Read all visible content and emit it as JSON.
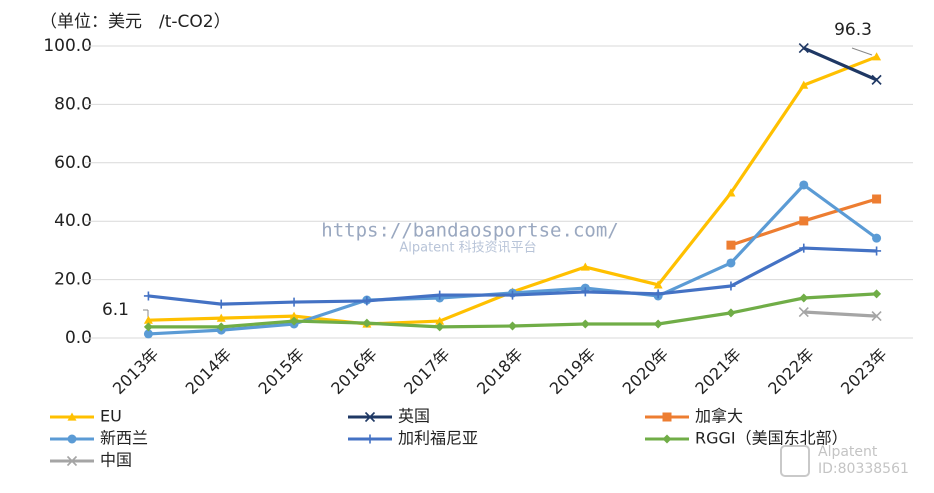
{
  "chart_data": {
    "type": "line",
    "unit_label": "（单位：美元　/t-CO2）",
    "categories": [
      "2013年",
      "2014年",
      "2015年",
      "2016年",
      "2017年",
      "2018年",
      "2019年",
      "2020年",
      "2021年",
      "2022年",
      "2023年"
    ],
    "ylim": [
      0,
      100
    ],
    "yticks": [
      {
        "value": 0,
        "label": "0.0"
      },
      {
        "value": 20,
        "label": "20.0"
      },
      {
        "value": 40,
        "label": "40.0"
      },
      {
        "value": 60,
        "label": "60.0"
      },
      {
        "value": 80,
        "label": "80.0"
      },
      {
        "value": 100,
        "label": "100.0"
      }
    ],
    "grid": true,
    "series": [
      {
        "name": "EU",
        "color": "#ffc000",
        "marker": "triangle",
        "values": [
          6.1,
          6.8,
          7.5,
          4.8,
          5.8,
          15.8,
          24.3,
          18.2,
          49.7,
          86.6,
          96.3
        ]
      },
      {
        "name": "英国",
        "color": "#1f3864",
        "marker": "x",
        "values": [
          null,
          null,
          null,
          null,
          null,
          null,
          null,
          null,
          null,
          99.3,
          88.4
        ]
      },
      {
        "name": "加拿大",
        "color": "#ed7d31",
        "marker": "square",
        "values": [
          null,
          null,
          null,
          null,
          null,
          null,
          null,
          null,
          31.8,
          40.1,
          47.6
        ]
      },
      {
        "name": "新西兰",
        "color": "#5b9bd5",
        "marker": "circle",
        "values": [
          1.4,
          2.7,
          4.8,
          13.0,
          13.7,
          15.4,
          17.1,
          14.4,
          25.7,
          52.4,
          34.2
        ]
      },
      {
        "name": "加利福尼亚",
        "color": "#4472c4",
        "marker": "plus",
        "values": [
          14.4,
          11.6,
          12.3,
          12.7,
          14.7,
          14.7,
          15.8,
          15.1,
          17.8,
          30.8,
          29.8
        ]
      },
      {
        "name": "RGGI（美国东北部）",
        "color": "#70ad47",
        "marker": "diamond",
        "values": [
          3.8,
          3.8,
          5.8,
          5.1,
          3.8,
          4.1,
          4.8,
          4.8,
          8.6,
          13.7,
          15.1
        ]
      },
      {
        "name": "中国",
        "color": "#a5a5a5",
        "marker": "x",
        "values": [
          null,
          null,
          null,
          null,
          null,
          null,
          null,
          null,
          null,
          8.9,
          7.5
        ]
      }
    ],
    "watermarks": [
      "https://bandaosportse.com/",
      "Alpatent  科技资讯平台",
      "Alpatent",
      "ID:80338561"
    ]
  }
}
